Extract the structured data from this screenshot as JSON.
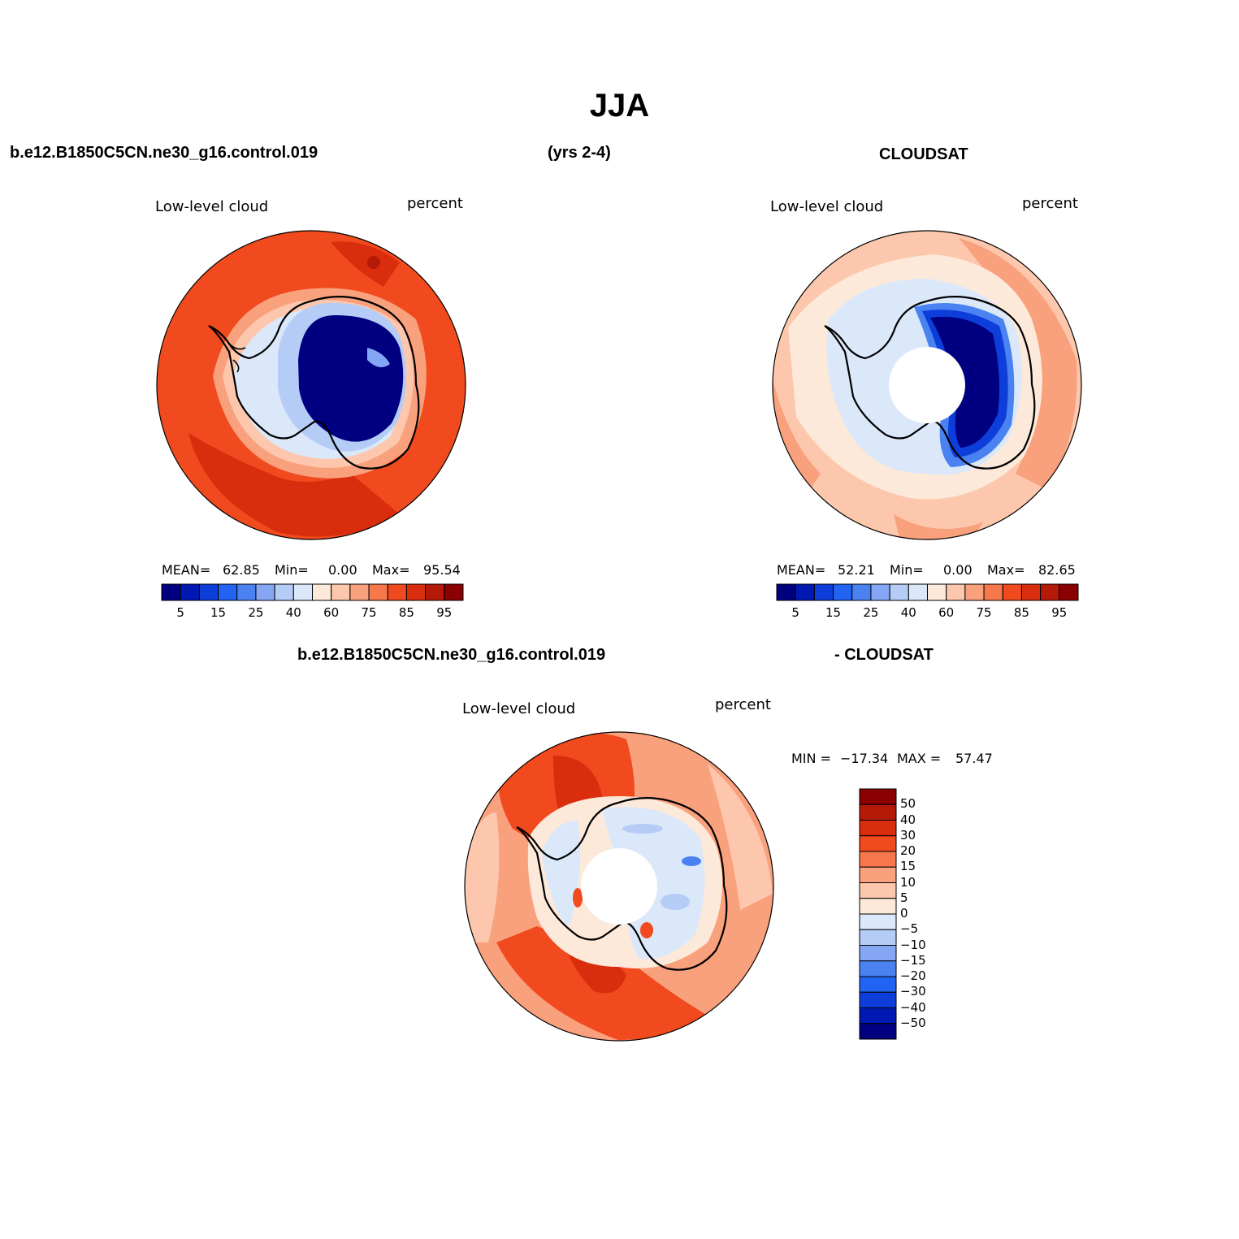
{
  "title": "JJA",
  "header": {
    "case_name": "b.e12.B1850C5CN.ne30_g16.control.019",
    "years": "(yrs 2-4)",
    "obs_name": "CLOUDSAT",
    "diff_case_name": "b.e12.B1850C5CN.ne30_g16.control.019",
    "diff_obs_name": "- CLOUDSAT"
  },
  "panels": {
    "model": {
      "variable": "Low-level cloud",
      "units": "percent",
      "stats": {
        "mean_label": "MEAN=",
        "mean": "62.85",
        "min_label": "Min=",
        "min": "0.00",
        "max_label": "Max=",
        "max": "95.54"
      }
    },
    "obs": {
      "variable": "Low-level cloud",
      "units": "percent",
      "stats": {
        "mean_label": "MEAN=",
        "mean": "52.21",
        "min_label": "Min=",
        "min": "0.00",
        "max_label": "Max=",
        "max": "82.65"
      }
    },
    "diff": {
      "variable": "Low-level cloud",
      "units": "percent",
      "stats": {
        "min_label": "MIN =",
        "min": "−17.34",
        "max_label": "MAX =",
        "max": "57.47"
      }
    }
  },
  "colorbars": {
    "abs": {
      "colors": [
        "#000080",
        "#0019b3",
        "#0d3ed9",
        "#2163f2",
        "#4a82f2",
        "#85a6f5",
        "#b5ccf7",
        "#dbe8fa",
        "#fde9d9",
        "#fcc7ad",
        "#f9a07d",
        "#f6784b",
        "#f04a1e",
        "#d92d0d",
        "#b51a08",
        "#8b0000"
      ],
      "tick_labels": [
        "5",
        "15",
        "25",
        "40",
        "60",
        "75",
        "85",
        "95"
      ]
    },
    "diff": {
      "colors": [
        "#000080",
        "#0019b3",
        "#0d3ed9",
        "#2163f2",
        "#4a82f2",
        "#85a6f5",
        "#b5ccf7",
        "#dbe8fa",
        "#fde9d9",
        "#fcc7ad",
        "#f9a07d",
        "#f6784b",
        "#f04a1e",
        "#d92d0d",
        "#b51a08",
        "#8b0000"
      ],
      "tick_labels": [
        "50",
        "40",
        "30",
        "20",
        "15",
        "10",
        "5",
        "0",
        "−5",
        "−10",
        "−15",
        "−20",
        "−30",
        "−40",
        "−50"
      ]
    }
  }
}
